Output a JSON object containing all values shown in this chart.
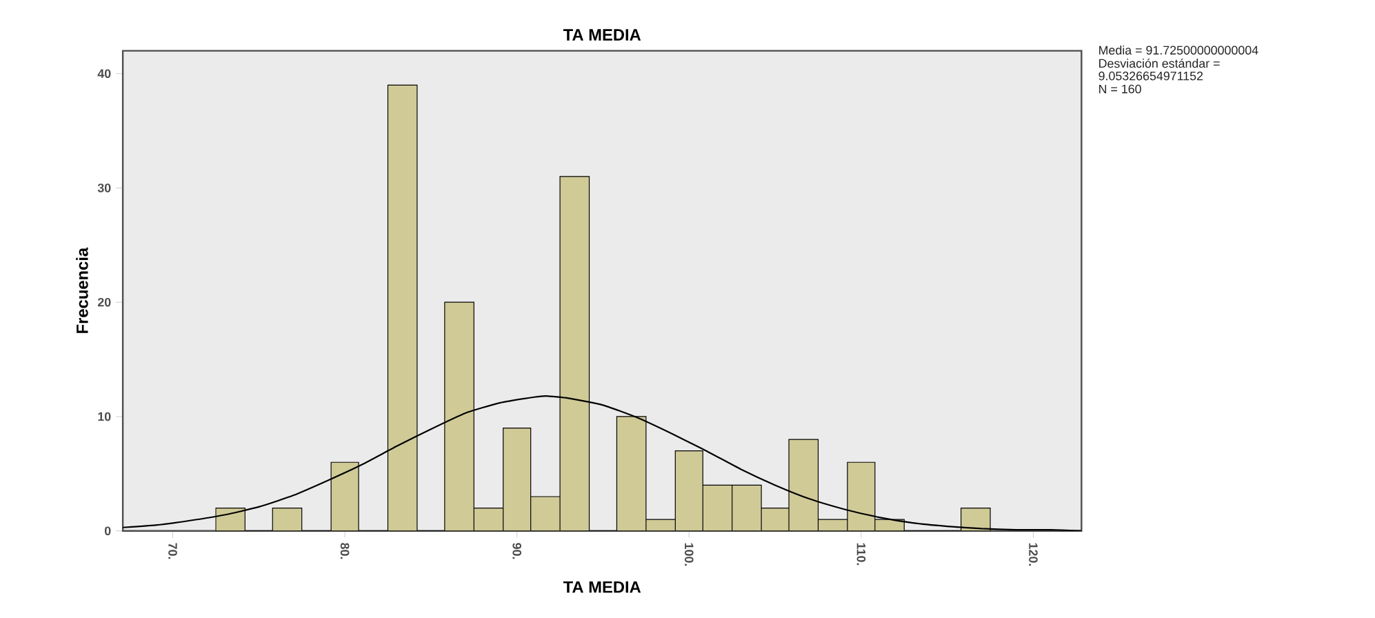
{
  "chart_data": {
    "type": "histogram",
    "title": "TA MEDIA",
    "xlabel": "TA MEDIA",
    "ylabel": "Frecuencia",
    "bins": [
      72.5,
      74.2,
      75.8,
      77.5,
      79.2,
      80.8,
      82.5,
      84.2,
      85.8,
      87.5,
      89.2,
      90.8,
      92.5,
      94.2,
      95.8,
      97.5,
      99.2,
      100.8,
      102.5,
      104.2,
      105.8,
      107.5,
      109.2,
      110.8,
      112.5,
      115.8,
      117.5
    ],
    "values": [
      2,
      0,
      2,
      0,
      6,
      0,
      39,
      0,
      20,
      2,
      9,
      3,
      31,
      0,
      10,
      1,
      7,
      4,
      4,
      2,
      8,
      1,
      6,
      1,
      0,
      2
    ],
    "color": "#d0ca97",
    "series": [
      {
        "type": "line",
        "color": "#000000",
        "x": [
          67.1,
          69,
          71,
          73,
          75,
          77,
          79,
          81,
          83,
          85,
          87,
          89,
          91,
          91.7,
          93,
          95,
          97,
          99,
          101,
          103,
          105,
          107,
          109,
          111,
          113,
          115,
          117,
          119,
          121,
          122.8
        ],
        "values": [
          0.3,
          0.5,
          0.9,
          1.4,
          2.1,
          3.1,
          4.4,
          5.8,
          7.4,
          8.9,
          10.3,
          11.2,
          11.7,
          11.8,
          11.6,
          11.0,
          9.9,
          8.5,
          7.0,
          5.4,
          4.0,
          2.8,
          1.9,
          1.2,
          0.7,
          0.4,
          0.2,
          0.1,
          0.1,
          0.0
        ]
      }
    ],
    "xlim": [
      67.1,
      122.8
    ],
    "ylim": [
      0,
      42
    ],
    "xticks": [
      {
        "value": 70,
        "label": "70."
      },
      {
        "value": 80,
        "label": "80."
      },
      {
        "value": 90,
        "label": "90."
      },
      {
        "value": 100,
        "label": "100."
      },
      {
        "value": 110,
        "label": "110."
      },
      {
        "value": 120,
        "label": "120."
      }
    ],
    "yticks": [
      0,
      10,
      20,
      30,
      40
    ],
    "grid": false,
    "annotations": [
      "Media = 91.72500000000004",
      "Desviación estándar =",
      "9.05326654971152",
      "N = 160"
    ]
  }
}
